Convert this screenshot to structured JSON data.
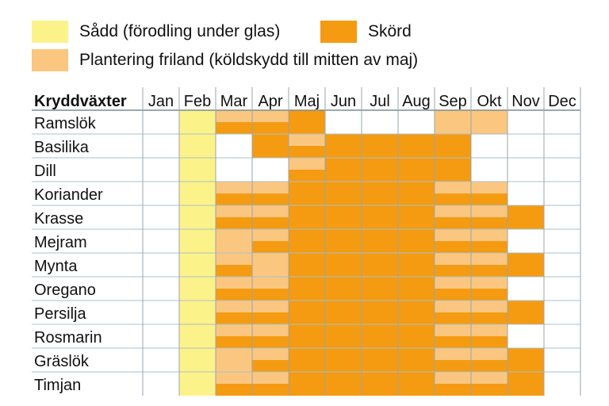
{
  "colors": {
    "sadd": "#fcf28a",
    "plantering": "#fbc680",
    "skord": "#f49b12",
    "grid": "#9aa6ac",
    "row_line": "#a9c2c9"
  },
  "legend": {
    "sadd_label": "Sådd (förodling under glas)",
    "skord_label": "Skörd",
    "plantering_label": "Plantering friland (köldskydd till mitten av maj)"
  },
  "chart_data": {
    "type": "table",
    "header": "Kryddväxter",
    "months": [
      "Jan",
      "Feb",
      "Mar",
      "Apr",
      "Maj",
      "Jun",
      "Jul",
      "Aug",
      "Sep",
      "Okt",
      "Nov",
      "Dec"
    ],
    "legend_key": {
      "S": "Sådd (förodling under glas)",
      "P": "Plantering friland (köldskydd till mitten av maj)",
      "H": "Skörd",
      "PH": "Plantering friland + Skörd"
    },
    "rows": [
      {
        "name": "Ramslök",
        "cells": [
          "",
          "S",
          "PH",
          "PH",
          "H",
          "",
          "",
          "",
          "P",
          "P",
          "",
          ""
        ]
      },
      {
        "name": "Basilika",
        "cells": [
          "",
          "S",
          "",
          "H",
          "PH",
          "H",
          "H",
          "H",
          "H",
          "",
          "",
          ""
        ]
      },
      {
        "name": "Dill",
        "cells": [
          "",
          "S",
          "",
          "",
          "PH",
          "H",
          "H",
          "H",
          "H",
          "",
          "",
          ""
        ]
      },
      {
        "name": "Koriander",
        "cells": [
          "",
          "S",
          "PH",
          "PH",
          "H",
          "H",
          "H",
          "H",
          "PH",
          "PH",
          "",
          ""
        ]
      },
      {
        "name": "Krasse",
        "cells": [
          "",
          "S",
          "PH",
          "PH",
          "H",
          "H",
          "H",
          "H",
          "PH",
          "PH",
          "H",
          ""
        ]
      },
      {
        "name": "Mejram",
        "cells": [
          "",
          "S",
          "P",
          "PH",
          "H",
          "H",
          "H",
          "H",
          "PH",
          "PH",
          "",
          ""
        ]
      },
      {
        "name": "Mynta",
        "cells": [
          "",
          "S",
          "PH",
          "P",
          "H",
          "H",
          "H",
          "H",
          "PH",
          "PH",
          "H",
          ""
        ]
      },
      {
        "name": "Oregano",
        "cells": [
          "",
          "S",
          "PH",
          "PH",
          "H",
          "H",
          "H",
          "H",
          "PH",
          "PH",
          "",
          ""
        ]
      },
      {
        "name": "Persilja",
        "cells": [
          "",
          "S",
          "PH",
          "PH",
          "H",
          "H",
          "H",
          "H",
          "PH",
          "PH",
          "H",
          ""
        ]
      },
      {
        "name": "Rosmarin",
        "cells": [
          "",
          "S",
          "PH",
          "PH",
          "H",
          "H",
          "H",
          "H",
          "PH",
          "PH",
          "",
          ""
        ]
      },
      {
        "name": "Gräslök",
        "cells": [
          "",
          "S",
          "P",
          "PH",
          "H",
          "H",
          "H",
          "H",
          "PH",
          "PH",
          "H",
          ""
        ]
      },
      {
        "name": "Timjan",
        "cells": [
          "",
          "S",
          "PH",
          "PH",
          "H",
          "H",
          "H",
          "H",
          "PH",
          "PH",
          "H",
          ""
        ]
      }
    ]
  }
}
